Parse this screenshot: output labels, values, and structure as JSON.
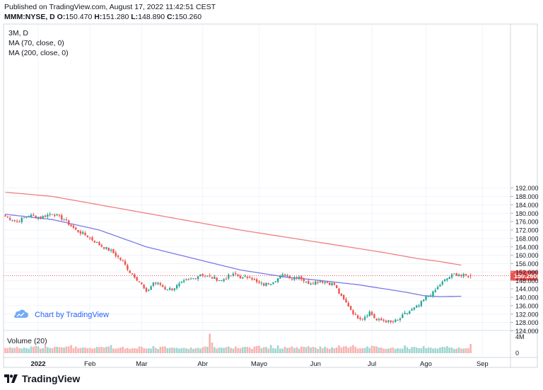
{
  "header": {
    "published": "Published on TradingView.com, August 17, 2022 11:42:51 CEST",
    "ohlc": {
      "symbol": "MMM:NYSE, D",
      "o_label": "O:",
      "o": "150.470",
      "h_label": "H:",
      "h": "151.280",
      "l_label": "L:",
      "l": "148.890",
      "c_label": "C:",
      "c": "150.260"
    }
  },
  "legend": {
    "symbol": "3M, D",
    "ma70": "MA (70, close, 0)",
    "ma200": "MA (200, close, 0)"
  },
  "watermark": "Chart by TradingView",
  "volume_label": "Volume (20)",
  "brand": "TradingView",
  "colors": {
    "up": "#26a69a",
    "down": "#ef5350",
    "ma70": "#7b79e6",
    "ma200": "#f08080",
    "price_line": "#ef5350",
    "vol_up": "#9ed6cf",
    "vol_down": "#f7b3b1",
    "watermark": "#2962ff"
  },
  "chart_data": {
    "type": "candlestick",
    "symbol": "MMM:NYSE",
    "interval": "D",
    "last_price": 150.26,
    "last_price_label": "150.260",
    "y_ticks": [
      124,
      128,
      132,
      136,
      140,
      144,
      148,
      152,
      156,
      160,
      164,
      168,
      172,
      176,
      180,
      184,
      188,
      192
    ],
    "y_tick_labels": [
      "124.000",
      "128.000",
      "132.000",
      "136.000",
      "140.000",
      "144.000",
      "148.000",
      "152.000",
      "156.000",
      "160.000",
      "164.000",
      "168.000",
      "172.000",
      "176.000",
      "180.000",
      "184.000",
      "188.000",
      "192.000"
    ],
    "x_labels": [
      "2022",
      "Feb",
      "Mar",
      "Abr",
      "Mayo",
      "Jun",
      "Jul",
      "Ago",
      "Sep"
    ],
    "volume_axis_labels": [
      "4M",
      "0"
    ],
    "close_anchors": [
      [
        0,
        178.5
      ],
      [
        5,
        176
      ],
      [
        10,
        179
      ],
      [
        15,
        178
      ],
      [
        20,
        180
      ],
      [
        25,
        177
      ],
      [
        30,
        172
      ],
      [
        35,
        169
      ],
      [
        40,
        165
      ],
      [
        45,
        162
      ],
      [
        50,
        157
      ],
      [
        53,
        152
      ],
      [
        55,
        150
      ],
      [
        58,
        146
      ],
      [
        60,
        142
      ],
      [
        63,
        147
      ],
      [
        66,
        146
      ],
      [
        68,
        144
      ],
      [
        71,
        144
      ],
      [
        74,
        146
      ],
      [
        77,
        148
      ],
      [
        80,
        149
      ],
      [
        83,
        151
      ],
      [
        86,
        150
      ],
      [
        89,
        149
      ],
      [
        92,
        148
      ],
      [
        95,
        150
      ],
      [
        98,
        151
      ],
      [
        101,
        149
      ],
      [
        104,
        150
      ],
      [
        107,
        147
      ],
      [
        110,
        146
      ],
      [
        113,
        147
      ],
      [
        116,
        149
      ],
      [
        119,
        151
      ],
      [
        122,
        149
      ],
      [
        125,
        150
      ],
      [
        128,
        147
      ],
      [
        131,
        147
      ],
      [
        134,
        148
      ],
      [
        137,
        147
      ],
      [
        140,
        146
      ],
      [
        143,
        140
      ],
      [
        146,
        136
      ],
      [
        149,
        131
      ],
      [
        152,
        130
      ],
      [
        155,
        133
      ],
      [
        158,
        129
      ],
      [
        161,
        129
      ],
      [
        164,
        128
      ],
      [
        167,
        129
      ],
      [
        170,
        132
      ],
      [
        173,
        134
      ],
      [
        176,
        136
      ],
      [
        179,
        140
      ],
      [
        182,
        142
      ],
      [
        185,
        146
      ],
      [
        188,
        149
      ],
      [
        191,
        151
      ],
      [
        193,
        151
      ],
      [
        194,
        150.26
      ]
    ],
    "ma70_points": [
      [
        0,
        179.5
      ],
      [
        20,
        177
      ],
      [
        40,
        172
      ],
      [
        60,
        164
      ],
      [
        80,
        158.5
      ],
      [
        100,
        153
      ],
      [
        120,
        149.5
      ],
      [
        130,
        148.5
      ],
      [
        150,
        146
      ],
      [
        170,
        142.5
      ],
      [
        178,
        140.8
      ],
      [
        185,
        140.3
      ],
      [
        194,
        140.5
      ]
    ],
    "ma200_points": [
      [
        0,
        190
      ],
      [
        20,
        188
      ],
      [
        40,
        184
      ],
      [
        60,
        180
      ],
      [
        80,
        176
      ],
      [
        100,
        172
      ],
      [
        120,
        168.5
      ],
      [
        140,
        165
      ],
      [
        160,
        161.5
      ],
      [
        175,
        158.5
      ],
      [
        185,
        157
      ],
      [
        194,
        155.3
      ]
    ],
    "volume": [
      1.5,
      1.4,
      1.7,
      1.5,
      1.5,
      1.8,
      1.4,
      1.3,
      1.6,
      1.4,
      1.3,
      1.9,
      1.8,
      2.1,
      1.9,
      1.3,
      1.4,
      2.3,
      1.7,
      1.5,
      1.4,
      1.8,
      1.8,
      1.7,
      1.7,
      1.6,
      1.9,
      1.9,
      2.3,
      1.4,
      1.9,
      1.4,
      1.5,
      1.6,
      1.6,
      1.4,
      1.5,
      1.3,
      1.4,
      1.8,
      1.7,
      1.8,
      1.6,
      1.8,
      1.9,
      2.3,
      1.3,
      1.3,
      1.4,
      1.6,
      1.8,
      1.3,
      1.5,
      1.2,
      1.4,
      1.4,
      1.3,
      1.9,
      1.8,
      1.4,
      1.3,
      1.4,
      1.3,
      2.0,
      1.5,
      1.2,
      1.8,
      1.9,
      1.9,
      1.4,
      1.5,
      1.6,
      1.5,
      1.5,
      1.3,
      1.4,
      1.5,
      1.4,
      1.2,
      1.6,
      1.2,
      1.4,
      1.5,
      1.3,
      1.7,
      1.9,
      1.8,
      5.5,
      3.0,
      1.7,
      1.3,
      1.6,
      1.6,
      1.5,
      1.7,
      1.9,
      1.5,
      1.3,
      1.9,
      1.4,
      1.4,
      1.7,
      1.8,
      1.8,
      1.6,
      1.2,
      1.9,
      2.0,
      2.1,
      1.4,
      1.7,
      1.8,
      1.3,
      2.3,
      1.4,
      1.3,
      2.2,
      1.3,
      1.3,
      1.8,
      1.5,
      1.6,
      1.9,
      1.4,
      1.7,
      1.3,
      1.9,
      1.8,
      1.7,
      2.0,
      1.6,
      1.8,
      1.6,
      1.2,
      1.9,
      1.4,
      1.8,
      1.5,
      1.2,
      1.7,
      1.4,
      1.6,
      2.2,
      1.6,
      1.9,
      2.0,
      1.5,
      1.9,
      2.3,
      1.8,
      1.3,
      1.4,
      1.4,
      1.5,
      1.9,
      1.5,
      2.1,
      2.0,
      1.9,
      1.6,
      1.6,
      1.3,
      1.2,
      1.3,
      1.5,
      1.6,
      1.2,
      1.4,
      1.3,
      1.3,
      2.2,
      1.7,
      1.2,
      1.7,
      1.8,
      1.6,
      1.4,
      1.4,
      2.0,
      1.4,
      1.6,
      1.6,
      1.3,
      1.4,
      1.3,
      1.6,
      1.8,
      1.7,
      2.0,
      1.6,
      1.6,
      1.2,
      1.3,
      1.6,
      1.3,
      1.3,
      1.4,
      1.4,
      2.6
    ]
  }
}
